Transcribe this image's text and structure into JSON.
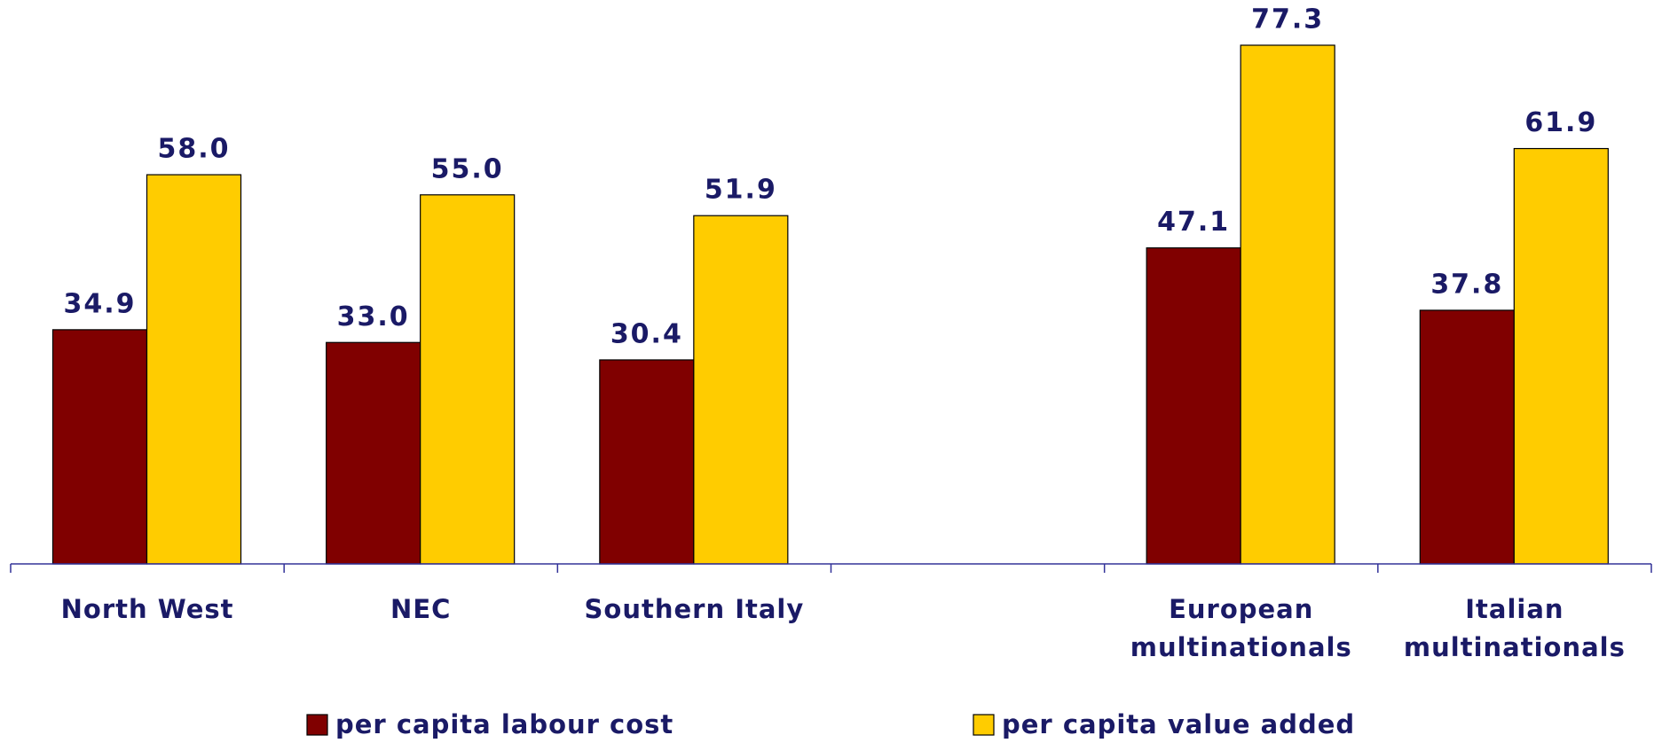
{
  "chart_data": {
    "type": "bar",
    "categories": [
      "North West",
      "NEC",
      "Southern Italy",
      null,
      "European multinationals",
      "Italian multinationals"
    ],
    "series": [
      {
        "name": "per capita labour cost",
        "color": "#800000",
        "values": [
          34.9,
          33.0,
          30.4,
          null,
          47.1,
          37.8
        ],
        "value_labels": [
          "34.9",
          "33.0",
          "30.4",
          null,
          "47.1",
          "37.8"
        ]
      },
      {
        "name": "per capita value added",
        "color": "#ffcc00",
        "values": [
          58.0,
          55.0,
          51.9,
          null,
          77.3,
          61.9
        ],
        "value_labels": [
          "58.0",
          "55.0",
          "51.9",
          null,
          "77.3",
          "61.9"
        ]
      }
    ],
    "legend": "bottom"
  }
}
